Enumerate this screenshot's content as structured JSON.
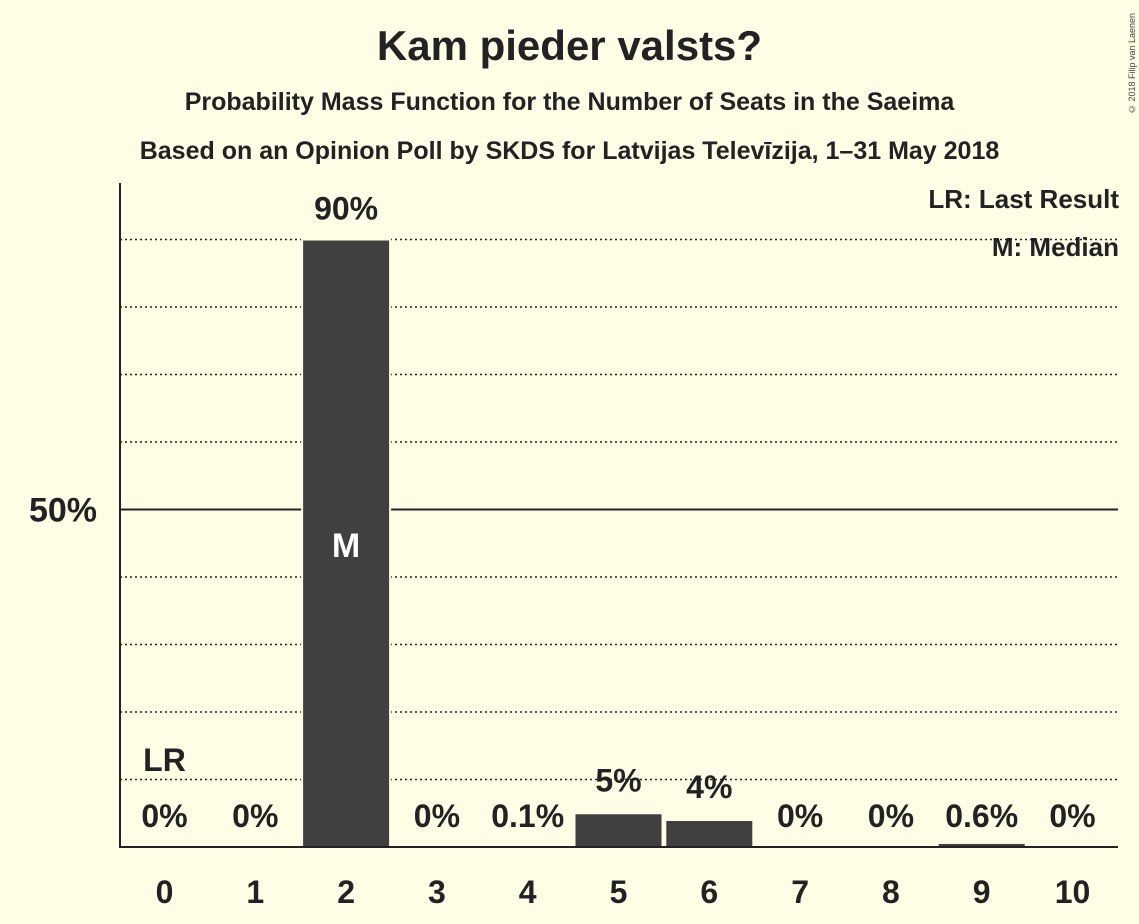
{
  "header": {
    "title": "Kam pieder valsts?",
    "subtitle": "Probability Mass Function for the Number of Seats in the Saeima",
    "source": "Based on an Opinion Poll by SKDS for Latvijas Televīzija, 1–31 May 2018",
    "copyright": "© 2018 Filip van Laenen"
  },
  "legend": {
    "lr": "LR: Last Result",
    "m": "M: Median"
  },
  "chart_data": {
    "type": "bar",
    "categories": [
      "0",
      "1",
      "2",
      "3",
      "4",
      "5",
      "6",
      "7",
      "8",
      "9",
      "10"
    ],
    "values": [
      0,
      0,
      90,
      0,
      0.1,
      5,
      4,
      0,
      0,
      0.6,
      0
    ],
    "value_labels": [
      "0%",
      "0%",
      "90%",
      "0%",
      "0.1%",
      "5%",
      "4%",
      "0%",
      "0%",
      "0.6%",
      "0%"
    ],
    "ylim": [
      0,
      100
    ],
    "ytick_label": "50%",
    "ytick_value": 50,
    "dotted_gridlines": [
      10,
      20,
      30,
      40,
      60,
      70,
      80,
      90
    ],
    "last_result": {
      "category": "0",
      "label": "LR"
    },
    "median": {
      "category": "2",
      "label": "M"
    },
    "bar_color": "#404040",
    "background_color": "#fffde6"
  }
}
